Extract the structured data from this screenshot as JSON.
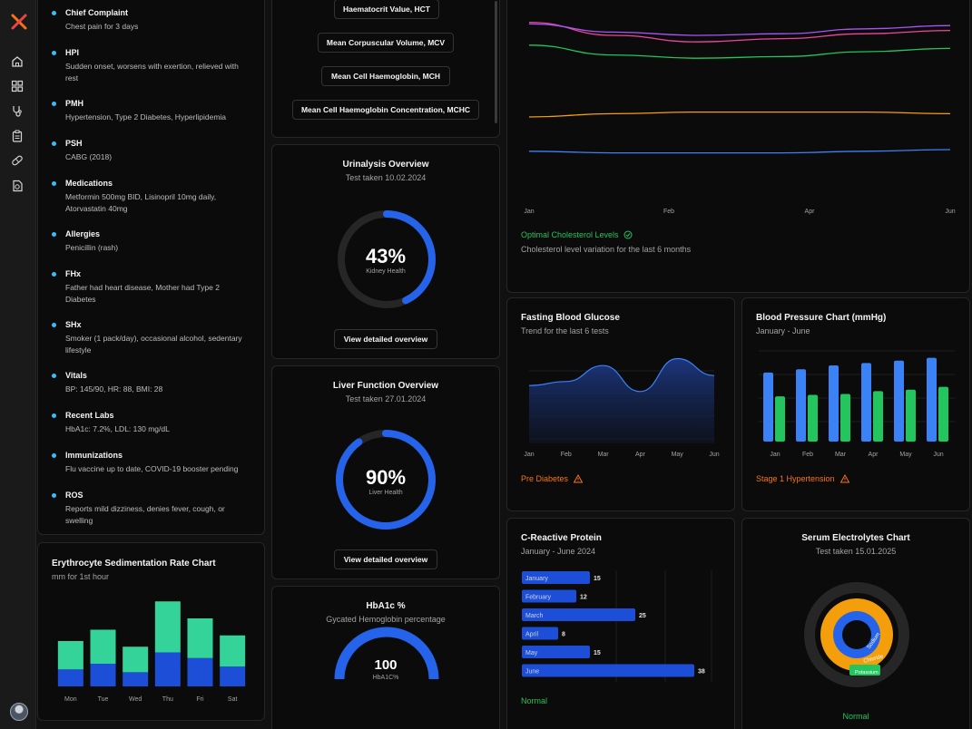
{
  "sidebar": {
    "icons": [
      "home-icon",
      "grid-icon",
      "stethoscope-icon",
      "clipboard-icon",
      "pill-icon",
      "report-icon"
    ]
  },
  "history": {
    "items": [
      {
        "label": "Chief Complaint",
        "value": "Chest pain for 3 days"
      },
      {
        "label": "HPI",
        "value": "Sudden onset, worsens with exertion, relieved with rest"
      },
      {
        "label": "PMH",
        "value": "Hypertension, Type 2 Diabetes, Hyperlipidemia"
      },
      {
        "label": "PSH",
        "value": "CABG (2018)"
      },
      {
        "label": "Medications",
        "value": "Metformin 500mg BID, Lisinopril 10mg daily, Atorvastatin 40mg"
      },
      {
        "label": "Allergies",
        "value": "Penicillin (rash)"
      },
      {
        "label": "FHx",
        "value": "Father had heart disease, Mother had Type 2 Diabetes"
      },
      {
        "label": "SHx",
        "value": "Smoker (1 pack/day), occasional alcohol, sedentary lifestyle"
      },
      {
        "label": "Vitals",
        "value": "BP: 145/90, HR: 88, BMI: 28"
      },
      {
        "label": "Recent Labs",
        "value": "HbA1c: 7.2%, LDL: 130 mg/dL"
      },
      {
        "label": "Immunizations",
        "value": "Flu vaccine up to date, COVID-19 booster pending"
      },
      {
        "label": "ROS",
        "value": "Reports mild dizziness, denies fever, cough, or swelling"
      }
    ]
  },
  "blood_tests": [
    "Haematocrit Value, HCT",
    "Mean Corpuscular Volume, MCV",
    "Mean Cell Haemoglobin, MCH",
    "Mean Cell Haemoglobin Concentration, MCHC"
  ],
  "urinalysis": {
    "title": "Urinalysis Overview",
    "date": "Test taken 10.02.2024",
    "value": "43%",
    "percent": 43,
    "caption": "Kidney Health",
    "button": "View detailed overview"
  },
  "liver": {
    "title": "Liver Function Overview",
    "date": "Test taken 27.01.2024",
    "value": "90%",
    "percent": 90,
    "caption": "Liver Health",
    "button": "View detailed overview"
  },
  "hba1c": {
    "title": "HbA1c %",
    "subtitle": "Gycated Hemoglobin percentage",
    "value": "100",
    "caption": "HbA1C%"
  },
  "cholesterol": {
    "status": "Optimal Cholesterol Levels",
    "description": "Cholesterol level variation for the last 6 months",
    "x_labels": [
      "Jan",
      "Feb",
      "Apr",
      "Jun"
    ],
    "colors": {
      "pink": "#ec4899",
      "purple": "#a855f7",
      "green": "#22c55e",
      "orange": "#f59e0b",
      "blue": "#3b82f6"
    }
  },
  "glucose": {
    "title": "Fasting Blood Glucose",
    "subtitle": "Trend for the last 6 tests",
    "status": "Pre Diabetes"
  },
  "bp": {
    "title": "Blood Pressure Chart (mmHg)",
    "subtitle": "January - June",
    "status": "Stage 1 Hypertension"
  },
  "crp": {
    "title": "C-Reactive Protein",
    "subtitle": "January - June 2024",
    "status": "Normal"
  },
  "electrolytes": {
    "title": "Serum Electrolytes Chart",
    "date": "Test taken 15.01.2025",
    "status": "Normal",
    "labels": [
      "Sodium",
      "Chloride",
      "Potassium"
    ]
  },
  "esr": {
    "title": "Erythrocyte Sedimentation Rate Chart",
    "subtitle": "mm for 1st hour"
  },
  "chart_data": [
    {
      "type": "line",
      "x": [
        "Jan",
        "Feb",
        "Mar",
        "Apr",
        "May",
        "Jun"
      ],
      "series": [
        {
          "color": "#ec4899",
          "values": [
            98,
            90,
            86,
            88,
            91,
            93
          ]
        },
        {
          "color": "#a855f7",
          "values": [
            97,
            92,
            90,
            91,
            94,
            96
          ]
        },
        {
          "color": "#22c55e",
          "values": [
            84,
            78,
            76,
            77,
            80,
            82
          ]
        },
        {
          "color": "#f59e0b",
          "values": [
            40,
            42,
            43,
            43,
            43,
            42
          ]
        },
        {
          "color": "#3b82f6",
          "values": [
            19,
            18,
            18,
            18,
            19,
            20
          ]
        }
      ]
    },
    {
      "type": "area",
      "title": "Fasting Blood Glucose",
      "x": [
        "Jan",
        "Feb",
        "Mar",
        "Apr",
        "May",
        "Jun"
      ],
      "values": [
        58,
        62,
        78,
        52,
        85,
        68
      ],
      "ylim": [
        0,
        100
      ]
    },
    {
      "type": "bar",
      "title": "Blood Pressure Chart (mmHg)",
      "categories": [
        "Jan",
        "Feb",
        "Mar",
        "Apr",
        "May",
        "Jun"
      ],
      "series": [
        {
          "color": "#3b82f6",
          "values": [
            145,
            152,
            160,
            165,
            170,
            176
          ]
        },
        {
          "color": "#22c55e",
          "values": [
            95,
            98,
            100,
            106,
            109,
            115
          ]
        }
      ],
      "ylim": [
        0,
        200
      ]
    },
    {
      "type": "bar",
      "orientation": "horizontal",
      "title": "C-Reactive Protein",
      "categories": [
        "January",
        "February",
        "March",
        "April",
        "May",
        "June"
      ],
      "values": [
        15,
        12,
        25,
        8,
        15,
        38
      ],
      "xlim": [
        0,
        40
      ]
    },
    {
      "type": "bar",
      "stacked": true,
      "title": "Erythrocyte Sedimentation Rate Chart",
      "categories": [
        "Mon",
        "Tue",
        "Wed",
        "Thu",
        "Fri",
        "Sat"
      ],
      "series": [
        {
          "color": "#1d4ed8",
          "values": [
            6,
            8,
            5,
            12,
            10,
            7
          ]
        },
        {
          "color": "#34d399",
          "values": [
            10,
            12,
            9,
            18,
            14,
            11
          ]
        }
      ],
      "ylim": [
        0,
        32
      ]
    },
    {
      "type": "pie",
      "title": "Serum Electrolytes Chart",
      "categories": [
        "Sodium",
        "Chloride",
        "Potassium"
      ],
      "values": [
        140,
        102,
        4.2
      ]
    }
  ]
}
